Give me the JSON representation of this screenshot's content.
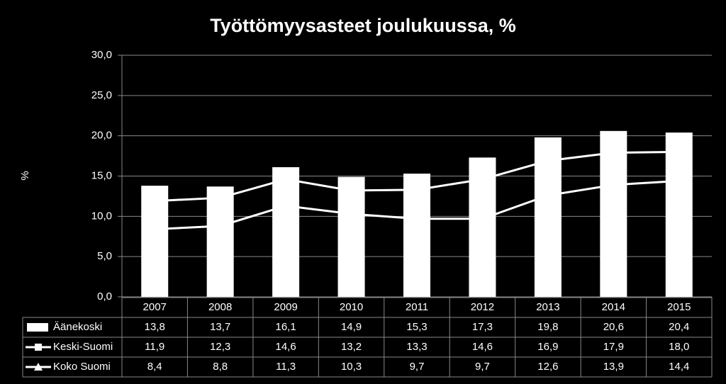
{
  "chart_data": {
    "type": "bar",
    "title": "Työttömyysasteet joulukuussa, %",
    "y_label": "%",
    "categories": [
      "2007",
      "2008",
      "2009",
      "2010",
      "2011",
      "2012",
      "2013",
      "2014",
      "2015"
    ],
    "series": [
      {
        "name": "Äänekoski",
        "type": "bar",
        "color": "#ffffff",
        "values": [
          13.8,
          13.7,
          16.1,
          14.9,
          15.3,
          17.3,
          19.8,
          20.6,
          20.4
        ],
        "value_labels": [
          "13,8",
          "13,7",
          "16,1",
          "14,9",
          "15,3",
          "17,3",
          "19,8",
          "20,6",
          "20,4"
        ]
      },
      {
        "name": "Keski-Suomi",
        "type": "line",
        "marker": "square",
        "color": "#ffffff",
        "values": [
          11.9,
          12.3,
          14.6,
          13.2,
          13.3,
          14.6,
          16.9,
          17.9,
          18.0
        ],
        "value_labels": [
          "11,9",
          "12,3",
          "14,6",
          "13,2",
          "13,3",
          "14,6",
          "16,9",
          "17,9",
          "18,0"
        ]
      },
      {
        "name": "Koko Suomi",
        "type": "line",
        "marker": "triangle",
        "color": "#ffffff",
        "values": [
          8.4,
          8.8,
          11.3,
          10.3,
          9.7,
          9.7,
          12.6,
          13.9,
          14.4
        ],
        "value_labels": [
          "8,4",
          "8,8",
          "11,3",
          "10,3",
          "9,7",
          "9,7",
          "12,6",
          "13,9",
          "14,4"
        ]
      }
    ],
    "ylim": [
      0,
      30
    ],
    "yticks": [
      {
        "value": 0,
        "label": "0,0"
      },
      {
        "value": 5,
        "label": "5,0"
      },
      {
        "value": 10,
        "label": "10,0"
      },
      {
        "value": 15,
        "label": "15,0"
      },
      {
        "value": 20,
        "label": "20,0"
      },
      {
        "value": 25,
        "label": "25,0"
      },
      {
        "value": 30,
        "label": "30,0"
      }
    ],
    "grid": true,
    "data_table": true
  }
}
